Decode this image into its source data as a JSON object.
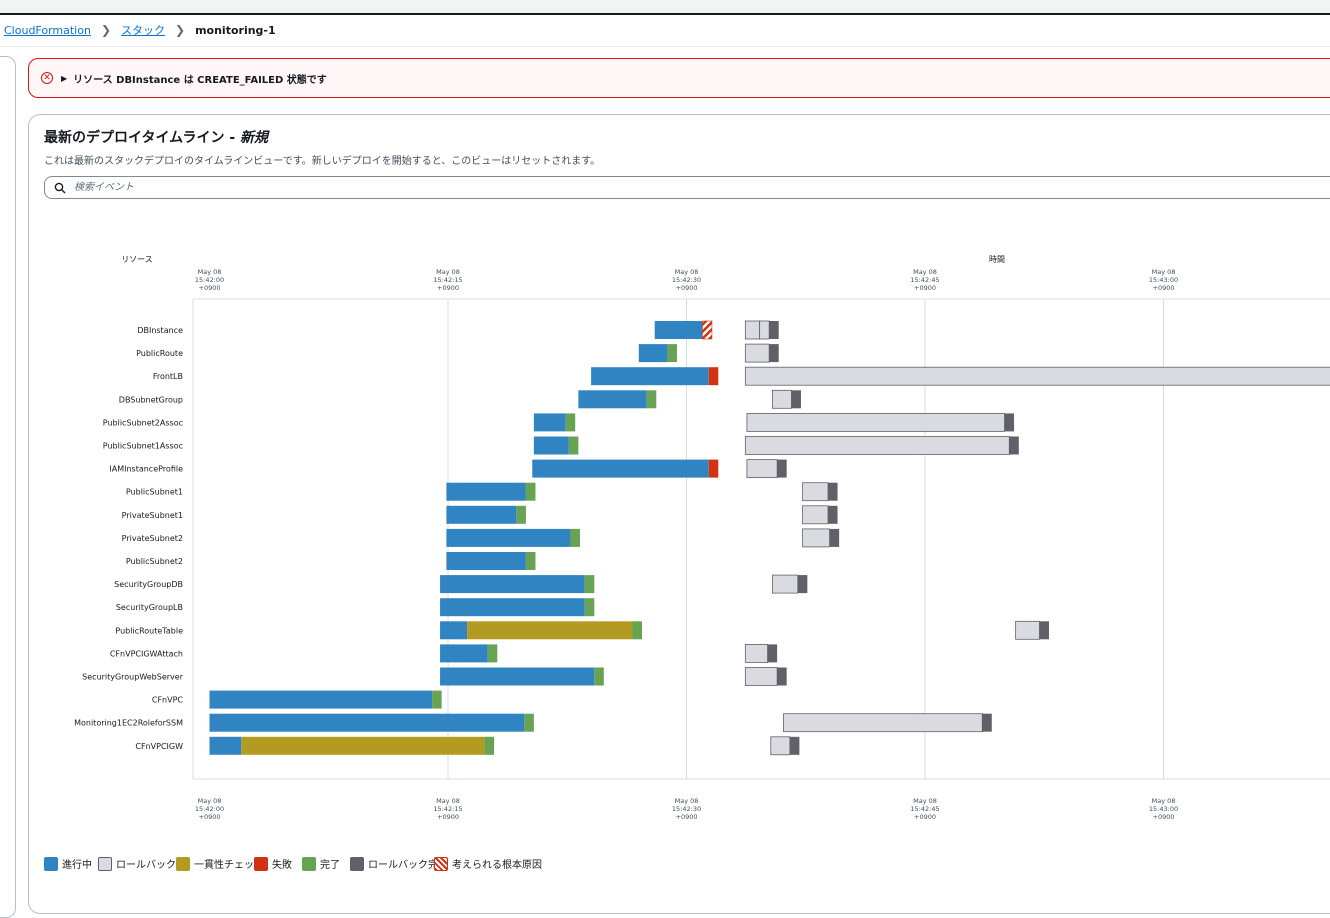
{
  "breadcrumb": {
    "items": [
      "CloudFormation",
      "スタック"
    ],
    "current": "monitoring-1"
  },
  "alert": {
    "message": "リソース DBInstance は CREATE_FAILED 状態です"
  },
  "timeline": {
    "title": "最新のデプロイタイムライン - ",
    "title_suffix": "新規",
    "description": "これは最新のスタックデプロイのタイムラインビューです。新しいデプロイを開始すると、このビューはリセットされます。",
    "search_placeholder": "検索イベント",
    "resource_header": "リソース",
    "time_header": "時間",
    "ticks": [
      {
        "date": "May 08",
        "time": "15:42:00",
        "tz": "+0900"
      },
      {
        "date": "May 08",
        "time": "15:42:15",
        "tz": "+0900"
      },
      {
        "date": "May 08",
        "time": "15:42:30",
        "tz": "+0900"
      },
      {
        "date": "May 08",
        "time": "15:42:45",
        "tz": "+0900"
      },
      {
        "date": "May 08",
        "time": "15:43:00",
        "tz": "+0900"
      }
    ]
  },
  "colors": {
    "in_progress": "#3184c2",
    "rollback": "#dadbe0",
    "consistency": "#b39a20",
    "failed": "#d13212",
    "complete": "#67a353",
    "rollback_complete": "#5f6068",
    "grid": "#d9dcdf"
  },
  "chart_data": {
    "type": "timeline",
    "x_range_seconds": [
      -1,
      71
    ],
    "x_tick_seconds": [
      0,
      15,
      30,
      45,
      60
    ],
    "resources": [
      {
        "name": "DBInstance",
        "segments": [
          {
            "s": 28,
            "e": 31,
            "t": "in_progress"
          },
          {
            "s": 31,
            "e": 31.6,
            "t": "root_cause"
          },
          {
            "s": 33.7,
            "e": 34.6,
            "t": "rollback"
          },
          {
            "s": 34.6,
            "e": 35.2,
            "t": "rollback"
          },
          {
            "s": 35.2,
            "e": 35.8,
            "t": "rollback_complete"
          }
        ]
      },
      {
        "name": "PublicRoute",
        "segments": [
          {
            "s": 27,
            "e": 28.8,
            "t": "in_progress"
          },
          {
            "s": 28.8,
            "e": 29.4,
            "t": "complete"
          },
          {
            "s": 33.7,
            "e": 35.2,
            "t": "rollback"
          },
          {
            "s": 35.2,
            "e": 35.8,
            "t": "rollback_complete"
          }
        ]
      },
      {
        "name": "FrontLB",
        "segments": [
          {
            "s": 24,
            "e": 31.4,
            "t": "in_progress"
          },
          {
            "s": 31.4,
            "e": 32.0,
            "t": "failed"
          },
          {
            "s": 33.7,
            "e": 73,
            "t": "rollback"
          }
        ]
      },
      {
        "name": "DBSubnetGroup",
        "segments": [
          {
            "s": 23.2,
            "e": 27.5,
            "t": "in_progress"
          },
          {
            "s": 27.5,
            "e": 28.1,
            "t": "complete"
          },
          {
            "s": 35.4,
            "e": 36.6,
            "t": "rollback"
          },
          {
            "s": 36.6,
            "e": 37.2,
            "t": "rollback_complete"
          }
        ]
      },
      {
        "name": "PublicSubnet2Assoc",
        "segments": [
          {
            "s": 20.4,
            "e": 22.4,
            "t": "in_progress"
          },
          {
            "s": 22.4,
            "e": 23.0,
            "t": "complete"
          },
          {
            "s": 33.8,
            "e": 50.0,
            "t": "rollback"
          },
          {
            "s": 50.0,
            "e": 50.6,
            "t": "rollback_complete"
          }
        ]
      },
      {
        "name": "PublicSubnet1Assoc",
        "segments": [
          {
            "s": 20.4,
            "e": 22.6,
            "t": "in_progress"
          },
          {
            "s": 22.6,
            "e": 23.2,
            "t": "complete"
          },
          {
            "s": 33.7,
            "e": 50.3,
            "t": "rollback"
          },
          {
            "s": 50.3,
            "e": 50.9,
            "t": "rollback_complete"
          }
        ]
      },
      {
        "name": "IAMInstanceProfile",
        "segments": [
          {
            "s": 20.3,
            "e": 31.4,
            "t": "in_progress"
          },
          {
            "s": 31.4,
            "e": 32.0,
            "t": "failed"
          },
          {
            "s": 33.8,
            "e": 35.7,
            "t": "rollback"
          },
          {
            "s": 35.7,
            "e": 36.3,
            "t": "rollback_complete"
          }
        ]
      },
      {
        "name": "PublicSubnet1",
        "segments": [
          {
            "s": 14.9,
            "e": 19.9,
            "t": "in_progress"
          },
          {
            "s": 19.9,
            "e": 20.5,
            "t": "complete"
          },
          {
            "s": 37.3,
            "e": 38.9,
            "t": "rollback"
          },
          {
            "s": 38.9,
            "e": 39.5,
            "t": "rollback_complete"
          }
        ]
      },
      {
        "name": "PrivateSubnet1",
        "segments": [
          {
            "s": 14.9,
            "e": 19.3,
            "t": "in_progress"
          },
          {
            "s": 19.3,
            "e": 19.9,
            "t": "complete"
          },
          {
            "s": 37.3,
            "e": 38.9,
            "t": "rollback"
          },
          {
            "s": 38.9,
            "e": 39.5,
            "t": "rollback_complete"
          }
        ]
      },
      {
        "name": "PrivateSubnet2",
        "segments": [
          {
            "s": 14.9,
            "e": 22.7,
            "t": "in_progress"
          },
          {
            "s": 22.7,
            "e": 23.3,
            "t": "complete"
          },
          {
            "s": 37.3,
            "e": 39.0,
            "t": "rollback"
          },
          {
            "s": 39.0,
            "e": 39.6,
            "t": "rollback_complete"
          }
        ]
      },
      {
        "name": "PublicSubnet2",
        "segments": [
          {
            "s": 14.9,
            "e": 19.9,
            "t": "in_progress"
          },
          {
            "s": 19.9,
            "e": 20.5,
            "t": "complete"
          }
        ]
      },
      {
        "name": "SecurityGroupDB",
        "segments": [
          {
            "s": 14.5,
            "e": 23.6,
            "t": "in_progress"
          },
          {
            "s": 23.6,
            "e": 24.2,
            "t": "complete"
          },
          {
            "s": 35.4,
            "e": 37.0,
            "t": "rollback"
          },
          {
            "s": 37.0,
            "e": 37.6,
            "t": "rollback_complete"
          }
        ]
      },
      {
        "name": "SecurityGroupLB",
        "segments": [
          {
            "s": 14.5,
            "e": 23.6,
            "t": "in_progress"
          },
          {
            "s": 23.6,
            "e": 24.2,
            "t": "complete"
          }
        ]
      },
      {
        "name": "PublicRouteTable",
        "segments": [
          {
            "s": 14.5,
            "e": 16.2,
            "t": "in_progress"
          },
          {
            "s": 16.2,
            "e": 26.6,
            "t": "consistency"
          },
          {
            "s": 26.6,
            "e": 27.2,
            "t": "complete"
          },
          {
            "s": 50.7,
            "e": 52.2,
            "t": "rollback"
          },
          {
            "s": 52.2,
            "e": 52.8,
            "t": "rollback_complete"
          }
        ]
      },
      {
        "name": "CFnVPCIGWAttach",
        "segments": [
          {
            "s": 14.5,
            "e": 17.5,
            "t": "in_progress"
          },
          {
            "s": 17.5,
            "e": 18.1,
            "t": "complete"
          },
          {
            "s": 33.7,
            "e": 35.1,
            "t": "rollback"
          },
          {
            "s": 35.1,
            "e": 35.7,
            "t": "rollback_complete"
          }
        ]
      },
      {
        "name": "SecurityGroupWebServer",
        "segments": [
          {
            "s": 14.5,
            "e": 24.2,
            "t": "in_progress"
          },
          {
            "s": 24.2,
            "e": 24.8,
            "t": "complete"
          },
          {
            "s": 33.7,
            "e": 35.7,
            "t": "rollback"
          },
          {
            "s": 35.7,
            "e": 36.3,
            "t": "rollback_complete"
          }
        ]
      },
      {
        "name": "CFnVPC",
        "segments": [
          {
            "s": 0,
            "e": 14.0,
            "t": "in_progress"
          },
          {
            "s": 14.0,
            "e": 14.6,
            "t": "complete"
          }
        ]
      },
      {
        "name": "Monitoring1EC2RoleforSSM",
        "segments": [
          {
            "s": 0,
            "e": 19.8,
            "t": "in_progress"
          },
          {
            "s": 19.8,
            "e": 20.4,
            "t": "complete"
          },
          {
            "s": 36.1,
            "e": 48.6,
            "t": "rollback"
          },
          {
            "s": 48.6,
            "e": 49.2,
            "t": "rollback_complete"
          }
        ]
      },
      {
        "name": "CFnVPCIGW",
        "segments": [
          {
            "s": 0,
            "e": 2.0,
            "t": "in_progress"
          },
          {
            "s": 2.0,
            "e": 17.3,
            "t": "consistency"
          },
          {
            "s": 17.3,
            "e": 17.9,
            "t": "complete"
          },
          {
            "s": 35.3,
            "e": 36.5,
            "t": "rollback"
          },
          {
            "s": 36.5,
            "e": 37.1,
            "t": "rollback_complete"
          }
        ]
      }
    ]
  },
  "legend": [
    {
      "key": "in_progress",
      "label": "進行中"
    },
    {
      "key": "rollback",
      "label": "ロールバック"
    },
    {
      "key": "consistency",
      "label": "一貫性チェック"
    },
    {
      "key": "failed",
      "label": "失敗"
    },
    {
      "key": "complete",
      "label": "完了"
    },
    {
      "key": "rollback_complete",
      "label": "ロールバック完了"
    },
    {
      "key": "root_cause",
      "label": "考えられる根本原因"
    }
  ]
}
